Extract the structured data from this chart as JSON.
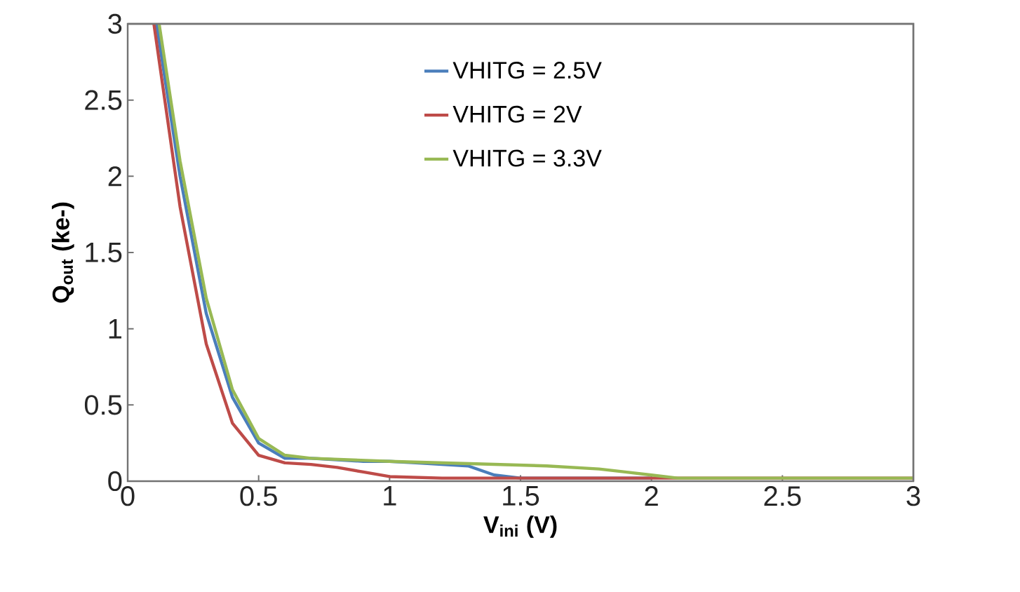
{
  "chart_data": {
    "type": "line",
    "xlabel": "V$_{ini}$ (V)",
    "ylabel": "Q$_{out}$ (ke-)",
    "xlim": [
      0,
      3
    ],
    "ylim": [
      0,
      3
    ],
    "xticks": [
      0,
      0.5,
      1,
      1.5,
      2,
      2.5,
      3
    ],
    "yticks": [
      0,
      0.5,
      1,
      1.5,
      2,
      2.5,
      3
    ],
    "grid": false,
    "legend": "top",
    "marker": "none",
    "line_style": "solid",
    "series": [
      {
        "name": "VHITG = 2.5V",
        "color": "#4a7ebb",
        "x": [
          0.11,
          0.2,
          0.3,
          0.4,
          0.5,
          0.6,
          0.7,
          0.8,
          0.9,
          1.0,
          1.1,
          1.2,
          1.3,
          1.4,
          1.5,
          2.0
        ],
        "values": [
          3,
          2.0,
          1.1,
          0.55,
          0.25,
          0.15,
          0.15,
          0.14,
          0.13,
          0.13,
          0.12,
          0.11,
          0.1,
          0.04,
          0.02,
          0.02
        ]
      },
      {
        "name": "VHITG = 2V",
        "color": "#be4b48",
        "x": [
          0.1,
          0.2,
          0.3,
          0.4,
          0.5,
          0.6,
          0.7,
          0.8,
          0.9,
          1.0,
          1.2,
          1.5,
          2.0,
          2.5,
          3.0
        ],
        "values": [
          3,
          1.8,
          0.9,
          0.38,
          0.17,
          0.12,
          0.11,
          0.09,
          0.06,
          0.03,
          0.02,
          0.02,
          0.02,
          0.02,
          0.02
        ]
      },
      {
        "name": "VHITG = 3.3V",
        "color": "#98b954",
        "x": [
          0.12,
          0.2,
          0.3,
          0.4,
          0.5,
          0.6,
          0.7,
          1.0,
          1.4,
          1.6,
          1.8,
          1.9,
          2.0,
          2.1,
          2.5,
          3.0
        ],
        "values": [
          3,
          2.1,
          1.2,
          0.6,
          0.28,
          0.17,
          0.15,
          0.13,
          0.11,
          0.1,
          0.08,
          0.06,
          0.04,
          0.02,
          0.02,
          0.02
        ]
      }
    ]
  }
}
